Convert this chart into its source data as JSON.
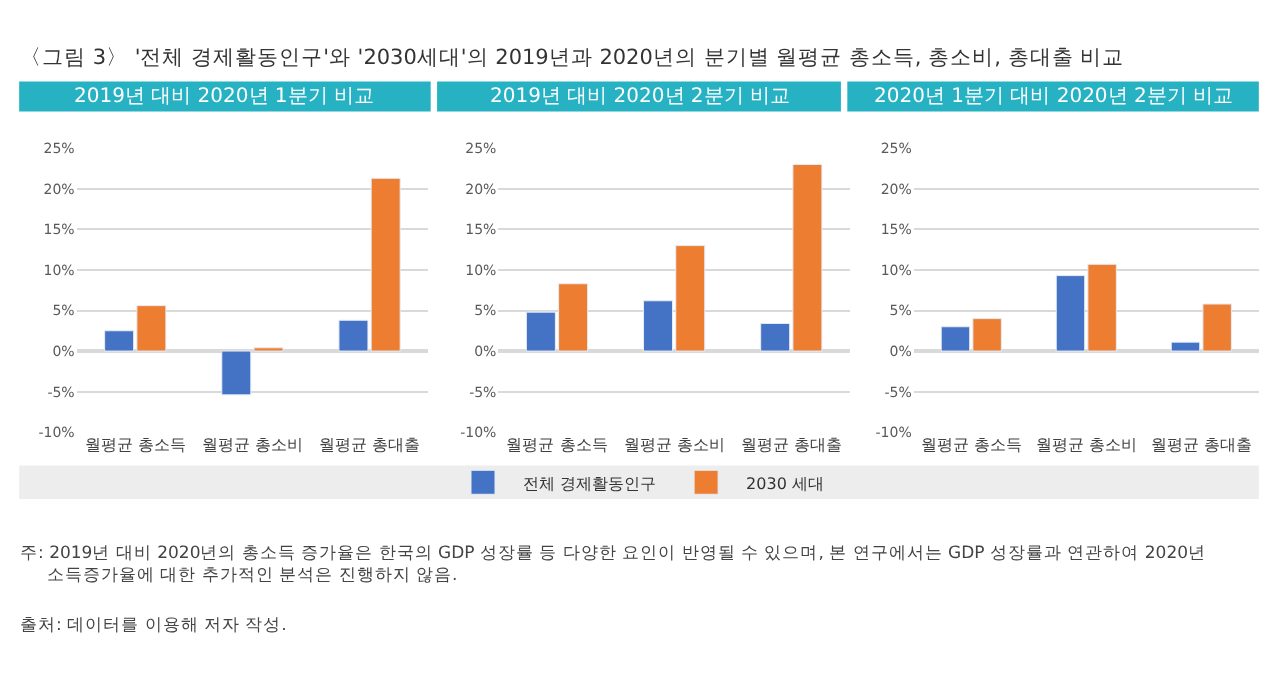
{
  "chart_data": [
    {
      "type": "bar",
      "title": "2019년 대비 2020년 1분기 비교",
      "categories": [
        "월평균 총소득",
        "월평균 총소비",
        "월평균 총대출"
      ],
      "series": [
        {
          "name": "전체 경제활동인구",
          "color": "#4472c4",
          "values": [
            2.5,
            -5.4,
            3.8
          ]
        },
        {
          "name": "2030 세대",
          "color": "#ed7d31",
          "values": [
            5.6,
            0.4,
            21.3
          ]
        }
      ],
      "ylim": [
        -10,
        25
      ],
      "yticks": [
        {
          "value": -10,
          "label": "-10%"
        },
        {
          "value": -5,
          "label": "-5%"
        },
        {
          "value": 0,
          "label": "0%"
        },
        {
          "value": 5,
          "label": "5%"
        },
        {
          "value": 10,
          "label": "10%"
        },
        {
          "value": 15,
          "label": "15%"
        },
        {
          "value": 20,
          "label": "20%"
        },
        {
          "value": 25,
          "label": "25%"
        }
      ],
      "grid": "y",
      "legend": "bottom",
      "annotations": [
        "〈그림 3〉 '전체 경제활동인구'와 '2030세대'의 2019년과 2020년의 분기별 월평균 총소득, 총소비, 총대출 비교"
      ]
    },
    {
      "type": "bar",
      "title": "2019년 대비 2020년 2분기 비교",
      "categories": [
        "월평균 총소득",
        "월평균 총소비",
        "월평균 총대출"
      ],
      "series": [
        {
          "name": "전체 경제활동인구",
          "color": "#4472c4",
          "values": [
            4.8,
            6.2,
            3.4
          ]
        },
        {
          "name": "2030 세대",
          "color": "#ed7d31",
          "values": [
            8.3,
            13.0,
            23.0
          ]
        }
      ],
      "ylim": [
        -10,
        25
      ],
      "yticks": [
        {
          "value": -10,
          "label": "-10%"
        },
        {
          "value": -5,
          "label": "-5%"
        },
        {
          "value": 0,
          "label": "0%"
        },
        {
          "value": 5,
          "label": "5%"
        },
        {
          "value": 10,
          "label": "10%"
        },
        {
          "value": 15,
          "label": "15%"
        },
        {
          "value": 20,
          "label": "20%"
        },
        {
          "value": 25,
          "label": "25%"
        }
      ],
      "grid": "y",
      "legend": "bottom"
    },
    {
      "type": "bar",
      "title": "2020년 1분기 대비 2020년 2분기 비교",
      "categories": [
        "월평균 총소득",
        "월평균 총소비",
        "월평균 총대출"
      ],
      "series": [
        {
          "name": "전체 경제활동인구",
          "color": "#4472c4",
          "values": [
            3.0,
            9.3,
            1.1
          ]
        },
        {
          "name": "2030 세대",
          "color": "#ed7d31",
          "values": [
            4.0,
            10.7,
            5.8
          ]
        }
      ],
      "ylim": [
        -10,
        25
      ],
      "yticks": [
        {
          "value": -10,
          "label": "-10%"
        },
        {
          "value": -5,
          "label": "-5%"
        },
        {
          "value": 0,
          "label": "0%"
        },
        {
          "value": 5,
          "label": "5%"
        },
        {
          "value": 10,
          "label": "10%"
        },
        {
          "value": 15,
          "label": "15%"
        },
        {
          "value": 20,
          "label": "20%"
        },
        {
          "value": 25,
          "label": "25%"
        }
      ],
      "grid": "y",
      "legend": "bottom",
      "annotations": [
        "주: 2019년 대비 2020년의 총소득 증가율은 한국의 GDP 성장률 등 다양한 요인이 반영될 수 있으며, 본 연구에서는 GDP 성장률과 연관하여 2020년 소득증가율에 대한 추가적인 분석은 진행하지 않음.",
        "출처: 데이터를 이용해 저자 작성."
      ]
    }
  ]
}
